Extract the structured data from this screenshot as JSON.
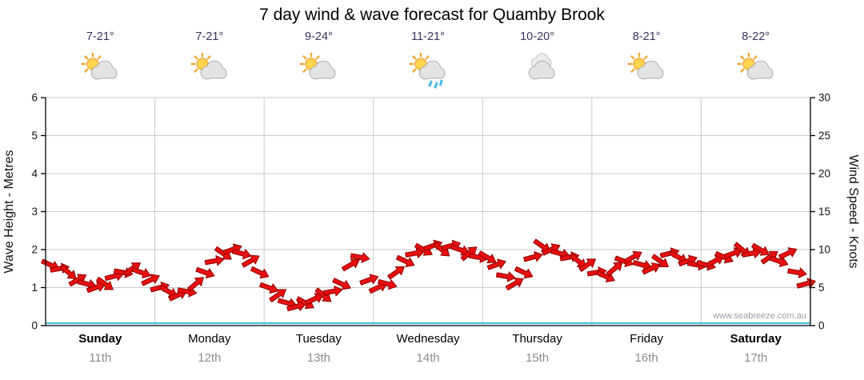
{
  "title": "7 day wind & wave forecast for Quamby Brook",
  "watermark": "www.seabreeze.com.au",
  "days": [
    {
      "name": "Sunday",
      "date": "11th",
      "temp": "7-21°",
      "icon": "sun-cloud",
      "bold": true
    },
    {
      "name": "Monday",
      "date": "12th",
      "temp": "7-21°",
      "icon": "sun-cloud",
      "bold": false
    },
    {
      "name": "Tuesday",
      "date": "13th",
      "temp": "9-24°",
      "icon": "sun-cloud",
      "bold": false
    },
    {
      "name": "Wednesday",
      "date": "14th",
      "temp": "11-21°",
      "icon": "sun-rain",
      "bold": false
    },
    {
      "name": "Thursday",
      "date": "15th",
      "temp": "10-20°",
      "icon": "cloudy",
      "bold": false
    },
    {
      "name": "Friday",
      "date": "16th",
      "temp": "8-21°",
      "icon": "sun-cloud",
      "bold": false
    },
    {
      "name": "Saturday",
      "date": "17th",
      "temp": "8-22°",
      "icon": "sun-cloud",
      "bold": true
    }
  ],
  "chart_data": {
    "type": "line",
    "title": "7 day wind & wave forecast for Quamby Brook",
    "categories": [
      "Sunday",
      "Monday",
      "Tuesday",
      "Wednesday",
      "Thursday",
      "Friday",
      "Saturday"
    ],
    "points_per_day": 12,
    "left_axis": {
      "label": "Wave Height - Metres",
      "min": 0,
      "max": 6,
      "ticks": [
        0,
        1,
        2,
        3,
        4,
        5,
        6
      ]
    },
    "right_axis": {
      "label": "Wind Speed - Knots",
      "min": 0,
      "max": 30,
      "ticks": [
        0,
        5,
        10,
        15,
        20,
        25,
        30
      ]
    },
    "grid": true,
    "series": [
      {
        "name": "Wind Speed",
        "unit": "knots",
        "color": "#e81010",
        "outline": "#8f0000",
        "marker": "wind-arrow",
        "values": [
          8,
          7.5,
          7,
          6,
          5.5,
          5,
          5.5,
          6.5,
          7,
          7.5,
          7,
          6,
          5,
          4.5,
          4,
          4.5,
          5.5,
          7,
          8.5,
          9.5,
          10,
          9.5,
          8.5,
          7,
          5,
          4,
          3,
          2.5,
          3,
          3.5,
          4,
          4.5,
          5.5,
          8,
          9,
          6,
          5,
          5.5,
          7,
          8.5,
          9.5,
          10,
          10.5,
          10,
          10.5,
          10,
          9.5,
          9,
          9,
          8,
          6.5,
          5.5,
          7,
          9,
          10.5,
          10,
          9.5,
          9,
          8.5,
          8,
          7,
          6.5,
          7.5,
          8.5,
          9,
          8,
          7.5,
          8.5,
          9.5,
          9,
          8.5,
          8,
          8,
          8.5,
          9,
          9.5,
          10,
          9.5,
          10,
          9,
          8.5,
          9.5,
          7,
          5.5
        ],
        "directions_deg": [
          25,
          -10,
          40,
          -30,
          15,
          -20,
          35,
          -15,
          10,
          -35,
          20,
          -25,
          -15,
          30,
          -25,
          10,
          -40,
          20,
          -10,
          35,
          -20,
          15,
          -30,
          25,
          20,
          -35,
          15,
          -15,
          30,
          -25,
          40,
          -10,
          25,
          -30,
          10,
          -20,
          -25,
          15,
          -35,
          25,
          -10,
          30,
          -20,
          40,
          -15,
          20,
          -40,
          10,
          30,
          -20,
          10,
          -30,
          25,
          -15,
          35,
          -25,
          15,
          -10,
          40,
          -35,
          -10,
          25,
          -40,
          20,
          -30,
          15,
          -25,
          35,
          -15,
          30,
          -20,
          10,
          15,
          -30,
          25,
          -20,
          40,
          -10,
          30,
          -35,
          20,
          -25,
          10,
          -15
        ]
      },
      {
        "name": "Wave Height",
        "unit": "metres",
        "color": "#3ec6de",
        "marker": "line",
        "values_constant": 0
      }
    ]
  }
}
